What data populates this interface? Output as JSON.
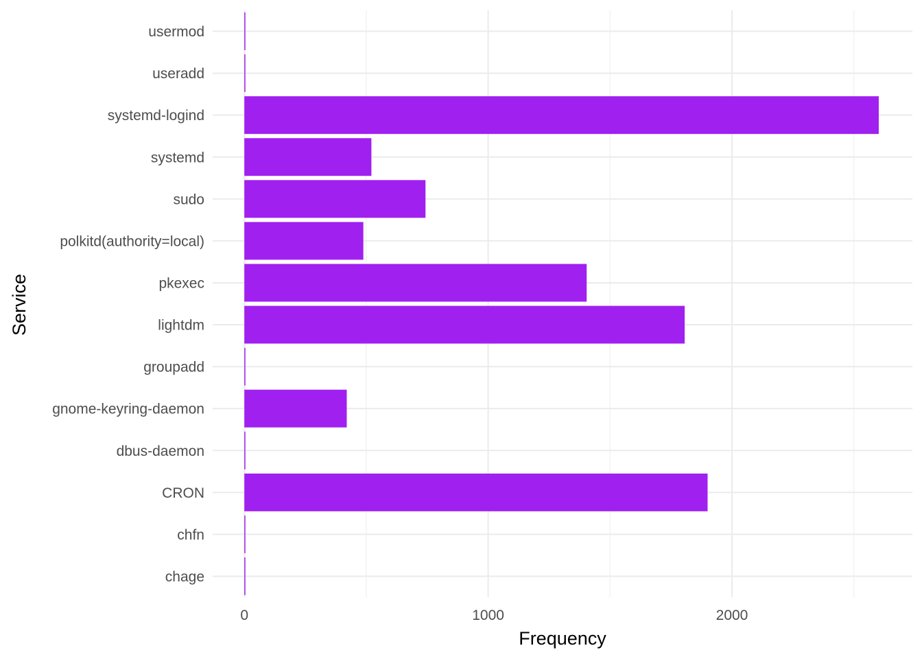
{
  "chart_data": {
    "type": "bar",
    "orientation": "horizontal",
    "title": "",
    "xlabel": "Frequency",
    "ylabel": "Service",
    "xlim": [
      -130,
      2740
    ],
    "x_ticks": [
      0,
      1000,
      2000
    ],
    "x_minor_gridlines": [
      500,
      1500,
      2500
    ],
    "grid": true,
    "bar_color": "#a020f0",
    "categories": [
      "usermod",
      "useradd",
      "systemd-logind",
      "systemd",
      "sudo",
      "polkitd(authority=local)",
      "pkexec",
      "lightdm",
      "groupadd",
      "gnome-keyring-daemon",
      "dbus-daemon",
      "CRON",
      "chfn",
      "chage"
    ],
    "values": [
      1,
      1,
      2602,
      521,
      743,
      488,
      1404,
      1806,
      3,
      420,
      1,
      1900,
      1,
      1
    ]
  }
}
